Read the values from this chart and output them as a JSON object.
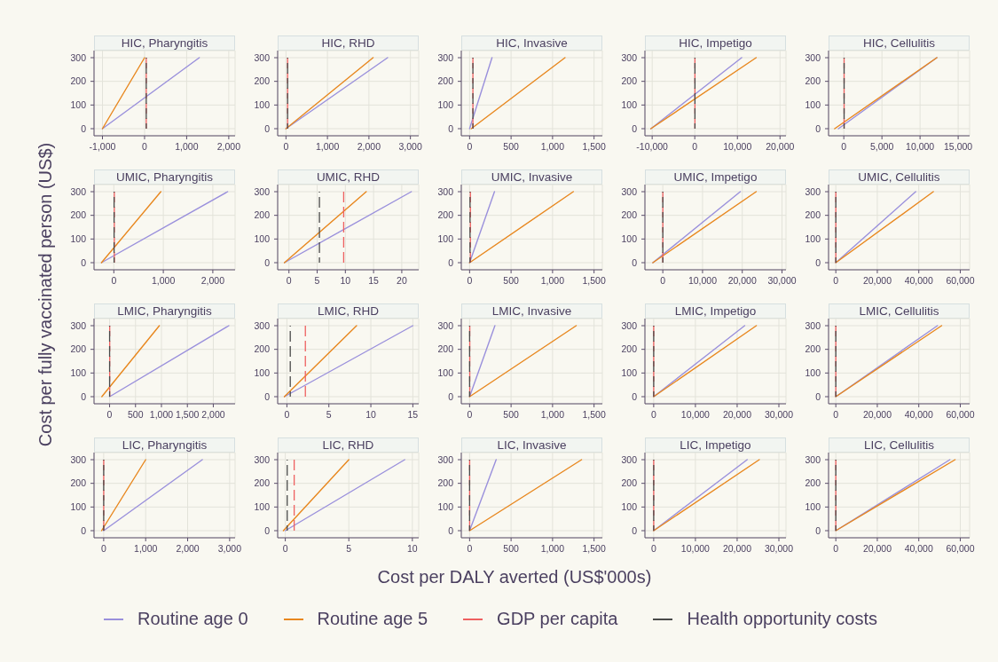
{
  "chart_data": [
    {
      "type": "line",
      "title": "HIC, Pharyngitis",
      "xlim": [
        -1200,
        2150
      ],
      "xticks": [
        {
          "value": -1000,
          "label": "-1,000"
        },
        0,
        {
          "value": 1000,
          "label": "1,000"
        },
        {
          "value": 2000,
          "label": "2,000"
        }
      ],
      "ylim": [
        -30,
        330
      ],
      "yticks": [
        0,
        100,
        200,
        300
      ],
      "grid": true,
      "series": [
        {
          "color": "#9a90dc",
          "x": [
            -1000,
            1300
          ],
          "values": [
            0,
            300
          ]
        },
        {
          "color": "#e8871e",
          "x": [
            -1000,
            0
          ],
          "values": [
            0,
            300
          ]
        }
      ],
      "ref_lines": [
        {
          "axis": "x",
          "value": 40,
          "color": "#ee6060",
          "line_style": "dashed"
        },
        {
          "axis": "x",
          "value": 40,
          "color": "#4a4a4a",
          "line_style": "dashed"
        }
      ]
    },
    {
      "type": "line",
      "title": "HIC, RHD",
      "xlim": [
        -200,
        3200
      ],
      "xticks": [
        0,
        {
          "value": 1000,
          "label": "1,000"
        },
        {
          "value": 2000,
          "label": "2,000"
        },
        {
          "value": 3000,
          "label": "3,000"
        }
      ],
      "ylim": [
        -30,
        330
      ],
      "yticks": [
        0,
        100,
        200,
        300
      ],
      "grid": true,
      "series": [
        {
          "color": "#9a90dc",
          "x": [
            0,
            2450
          ],
          "values": [
            0,
            300
          ]
        },
        {
          "color": "#e8871e",
          "x": [
            0,
            2100
          ],
          "values": [
            0,
            300
          ]
        }
      ],
      "ref_lines": [
        {
          "axis": "x",
          "value": 40,
          "color": "#ee6060",
          "line_style": "dashed"
        },
        {
          "axis": "x",
          "value": 40,
          "color": "#4a4a4a",
          "line_style": "dashed"
        }
      ]
    },
    {
      "type": "line",
      "title": "HIC, Invasive",
      "xlim": [
        -100,
        1600
      ],
      "xticks": [
        0,
        500,
        {
          "value": 1000,
          "label": "1,000"
        },
        {
          "value": 1500,
          "label": "1,500"
        }
      ],
      "ylim": [
        -30,
        330
      ],
      "yticks": [
        0,
        100,
        200,
        300
      ],
      "grid": true,
      "series": [
        {
          "color": "#9a90dc",
          "x": [
            0,
            270
          ],
          "values": [
            0,
            300
          ]
        },
        {
          "color": "#e8871e",
          "x": [
            20,
            1150
          ],
          "values": [
            0,
            300
          ]
        }
      ],
      "ref_lines": [
        {
          "axis": "x",
          "value": 40,
          "color": "#ee6060",
          "line_style": "dashed"
        },
        {
          "axis": "x",
          "value": 40,
          "color": "#4a4a4a",
          "line_style": "dashed"
        }
      ]
    },
    {
      "type": "line",
      "title": "HIC, Impetigo",
      "xlim": [
        -11700,
        21400
      ],
      "xticks": [
        {
          "value": -10000,
          "label": "-10,000"
        },
        0,
        {
          "value": 10000,
          "label": "10,000"
        },
        {
          "value": 20000,
          "label": "20,000"
        }
      ],
      "ylim": [
        -30,
        330
      ],
      "yticks": [
        0,
        100,
        200,
        300
      ],
      "grid": true,
      "series": [
        {
          "color": "#9a90dc",
          "x": [
            -10300,
            11000
          ],
          "values": [
            0,
            300
          ]
        },
        {
          "color": "#e8871e",
          "x": [
            -10300,
            14400
          ],
          "values": [
            0,
            300
          ]
        }
      ],
      "ref_lines": [
        {
          "axis": "x",
          "value": 40,
          "color": "#ee6060",
          "line_style": "dashed"
        },
        {
          "axis": "x",
          "value": 40,
          "color": "#4a4a4a",
          "line_style": "dashed"
        }
      ]
    },
    {
      "type": "line",
      "title": "HIC, Cellulitis",
      "xlim": [
        -2000,
        16500
      ],
      "xticks": [
        0,
        {
          "value": 5000,
          "label": "5,000"
        },
        {
          "value": 10000,
          "label": "10,000"
        },
        {
          "value": 15000,
          "label": "15,000"
        }
      ],
      "ylim": [
        -30,
        330
      ],
      "yticks": [
        0,
        100,
        200,
        300
      ],
      "grid": true,
      "series": [
        {
          "color": "#9a90dc",
          "x": [
            -700,
            12200
          ],
          "values": [
            0,
            300
          ]
        },
        {
          "color": "#e8871e",
          "x": [
            -1200,
            12200
          ],
          "values": [
            0,
            300
          ]
        }
      ],
      "ref_lines": [
        {
          "axis": "x",
          "value": 40,
          "color": "#ee6060",
          "line_style": "dashed"
        },
        {
          "axis": "x",
          "value": 40,
          "color": "#4a4a4a",
          "line_style": "dashed"
        }
      ]
    },
    {
      "type": "line",
      "title": "UMIC, Pharyngitis",
      "ylabel": "Cost per fully vaccinated person (US$)",
      "xlim": [
        -400,
        2450
      ],
      "xticks": [
        0,
        {
          "value": 1000,
          "label": "1,000"
        },
        {
          "value": 2000,
          "label": "2,000"
        }
      ],
      "ylim": [
        -30,
        330
      ],
      "yticks": [
        0,
        100,
        200,
        300
      ],
      "grid": true,
      "series": [
        {
          "color": "#9a90dc",
          "x": [
            -250,
            2300
          ],
          "values": [
            0,
            300
          ]
        },
        {
          "color": "#e8871e",
          "x": [
            -250,
            950
          ],
          "values": [
            0,
            300
          ]
        }
      ],
      "ref_lines": [
        {
          "axis": "x",
          "value": 9.7,
          "color": "#ee6060",
          "line_style": "dashed"
        },
        {
          "axis": "x",
          "value": 5.4,
          "color": "#4a4a4a",
          "line_style": "dashed"
        }
      ]
    },
    {
      "type": "line",
      "title": "UMIC, RHD",
      "xlim": [
        -2,
        23
      ],
      "xticks": [
        0,
        5,
        10,
        15,
        20
      ],
      "ylim": [
        -30,
        330
      ],
      "yticks": [
        0,
        100,
        200,
        300
      ],
      "grid": true,
      "series": [
        {
          "color": "#9a90dc",
          "x": [
            -0.8,
            21.7
          ],
          "values": [
            0,
            300
          ]
        },
        {
          "color": "#e8871e",
          "x": [
            -0.8,
            13.7
          ],
          "values": [
            0,
            300
          ]
        }
      ],
      "ref_lines": [
        {
          "axis": "x",
          "value": 9.7,
          "color": "#ee6060",
          "line_style": "dashed"
        },
        {
          "axis": "x",
          "value": 5.4,
          "color": "#4a4a4a",
          "line_style": "dashed"
        }
      ]
    },
    {
      "type": "line",
      "title": "UMIC, Invasive",
      "xlim": [
        -100,
        1600
      ],
      "xticks": [
        0,
        500,
        {
          "value": 1000,
          "label": "1,000"
        },
        {
          "value": 1500,
          "label": "1,500"
        }
      ],
      "ylim": [
        -30,
        330
      ],
      "yticks": [
        0,
        100,
        200,
        300
      ],
      "grid": true,
      "series": [
        {
          "color": "#9a90dc",
          "x": [
            0,
            300
          ],
          "values": [
            0,
            300
          ]
        },
        {
          "color": "#e8871e",
          "x": [
            0,
            1250
          ],
          "values": [
            0,
            300
          ]
        }
      ],
      "ref_lines": [
        {
          "axis": "x",
          "value": 9.7,
          "color": "#ee6060",
          "line_style": "dashed"
        },
        {
          "axis": "x",
          "value": 5.4,
          "color": "#4a4a4a",
          "line_style": "dashed"
        }
      ]
    },
    {
      "type": "line",
      "title": "UMIC, Impetigo",
      "xlim": [
        -4500,
        31000
      ],
      "xticks": [
        0,
        {
          "value": 10000,
          "label": "10,000"
        },
        {
          "value": 20000,
          "label": "20,000"
        },
        {
          "value": 30000,
          "label": "30,000"
        }
      ],
      "ylim": [
        -30,
        330
      ],
      "yticks": [
        0,
        100,
        200,
        300
      ],
      "grid": true,
      "series": [
        {
          "color": "#9a90dc",
          "x": [
            -2500,
            19500
          ],
          "values": [
            0,
            300
          ]
        },
        {
          "color": "#e8871e",
          "x": [
            -2500,
            23500
          ],
          "values": [
            0,
            300
          ]
        }
      ],
      "ref_lines": [
        {
          "axis": "x",
          "value": 9.7,
          "color": "#ee6060",
          "line_style": "dashed"
        },
        {
          "axis": "x",
          "value": 5.4,
          "color": "#4a4a4a",
          "line_style": "dashed"
        }
      ]
    },
    {
      "type": "line",
      "title": "UMIC, Cellulitis",
      "xlim": [
        -3500,
        64500
      ],
      "xticks": [
        0,
        {
          "value": 20000,
          "label": "20,000"
        },
        {
          "value": 40000,
          "label": "40,000"
        },
        {
          "value": 60000,
          "label": "60,000"
        }
      ],
      "ylim": [
        -30,
        330
      ],
      "yticks": [
        0,
        100,
        200,
        300
      ],
      "grid": true,
      "series": [
        {
          "color": "#9a90dc",
          "x": [
            0,
            38500
          ],
          "values": [
            0,
            300
          ]
        },
        {
          "color": "#e8871e",
          "x": [
            0,
            47000
          ],
          "values": [
            0,
            300
          ]
        }
      ],
      "ref_lines": [
        {
          "axis": "x",
          "value": 9.7,
          "color": "#ee6060",
          "line_style": "dashed"
        },
        {
          "axis": "x",
          "value": 5.4,
          "color": "#4a4a4a",
          "line_style": "dashed"
        }
      ]
    },
    {
      "type": "line",
      "title": "LMIC, Pharyngitis",
      "xlim": [
        -300,
        2420
      ],
      "xticks": [
        0,
        500,
        {
          "value": 1000,
          "label": "1,000"
        },
        {
          "value": 1500,
          "label": "1,500"
        },
        {
          "value": 2000,
          "label": "2,000"
        }
      ],
      "ylim": [
        -30,
        330
      ],
      "yticks": [
        0,
        100,
        200,
        300
      ],
      "grid": true,
      "series": [
        {
          "color": "#9a90dc",
          "x": [
            0,
            2300
          ],
          "values": [
            0,
            300
          ]
        },
        {
          "color": "#e8871e",
          "x": [
            -150,
            960
          ],
          "values": [
            0,
            300
          ]
        }
      ],
      "ref_lines": [
        {
          "axis": "x",
          "value": 2.2,
          "color": "#ee6060",
          "line_style": "dashed"
        },
        {
          "axis": "x",
          "value": 0.4,
          "color": "#4a4a4a",
          "line_style": "dashed"
        }
      ]
    },
    {
      "type": "line",
      "title": "LMIC, RHD",
      "xlim": [
        -1.1,
        15.7
      ],
      "xticks": [
        0,
        5,
        10,
        15
      ],
      "ylim": [
        -30,
        330
      ],
      "yticks": [
        0,
        100,
        200,
        300
      ],
      "grid": true,
      "series": [
        {
          "color": "#9a90dc",
          "x": [
            -0.3,
            15
          ],
          "values": [
            0,
            300
          ]
        },
        {
          "color": "#e8871e",
          "x": [
            -0.3,
            8.3
          ],
          "values": [
            0,
            300
          ]
        }
      ],
      "ref_lines": [
        {
          "axis": "x",
          "value": 2.2,
          "color": "#ee6060",
          "line_style": "dashed"
        },
        {
          "axis": "x",
          "value": 0.4,
          "color": "#4a4a4a",
          "line_style": "dashed"
        }
      ]
    },
    {
      "type": "line",
      "title": "LMIC, Invasive",
      "xlim": [
        -100,
        1600
      ],
      "xticks": [
        0,
        500,
        {
          "value": 1000,
          "label": "1,000"
        },
        {
          "value": 1500,
          "label": "1,500"
        }
      ],
      "ylim": [
        -30,
        330
      ],
      "yticks": [
        0,
        100,
        200,
        300
      ],
      "grid": true,
      "series": [
        {
          "color": "#9a90dc",
          "x": [
            0,
            305
          ],
          "values": [
            0,
            300
          ]
        },
        {
          "color": "#e8871e",
          "x": [
            0,
            1285
          ],
          "values": [
            0,
            300
          ]
        }
      ],
      "ref_lines": [
        {
          "axis": "x",
          "value": 2.2,
          "color": "#ee6060",
          "line_style": "dashed"
        },
        {
          "axis": "x",
          "value": 0.4,
          "color": "#4a4a4a",
          "line_style": "dashed"
        }
      ]
    },
    {
      "type": "line",
      "title": "LMIC, Impetigo",
      "xlim": [
        -2100,
        31700
      ],
      "xticks": [
        0,
        {
          "value": 10000,
          "label": "10,000"
        },
        {
          "value": 20000,
          "label": "20,000"
        },
        {
          "value": 30000,
          "label": "30,000"
        }
      ],
      "ylim": [
        -30,
        330
      ],
      "yticks": [
        0,
        100,
        200,
        300
      ],
      "grid": true,
      "series": [
        {
          "color": "#9a90dc",
          "x": [
            0,
            21800
          ],
          "values": [
            0,
            300
          ]
        },
        {
          "color": "#e8871e",
          "x": [
            0,
            24600
          ],
          "values": [
            0,
            300
          ]
        }
      ],
      "ref_lines": [
        {
          "axis": "x",
          "value": 2.2,
          "color": "#ee6060",
          "line_style": "dashed"
        },
        {
          "axis": "x",
          "value": 0.4,
          "color": "#4a4a4a",
          "line_style": "dashed"
        }
      ]
    },
    {
      "type": "line",
      "title": "LMIC, Cellulitis",
      "xlim": [
        -3500,
        64500
      ],
      "xticks": [
        0,
        {
          "value": 20000,
          "label": "20,000"
        },
        {
          "value": 40000,
          "label": "40,000"
        },
        {
          "value": 60000,
          "label": "60,000"
        }
      ],
      "ylim": [
        -30,
        330
      ],
      "yticks": [
        0,
        100,
        200,
        300
      ],
      "grid": true,
      "series": [
        {
          "color": "#9a90dc",
          "x": [
            0,
            49000
          ],
          "values": [
            0,
            300
          ]
        },
        {
          "color": "#e8871e",
          "x": [
            0,
            51000
          ],
          "values": [
            0,
            300
          ]
        }
      ],
      "ref_lines": [
        {
          "axis": "x",
          "value": 2.2,
          "color": "#ee6060",
          "line_style": "dashed"
        },
        {
          "axis": "x",
          "value": 0.4,
          "color": "#4a4a4a",
          "line_style": "dashed"
        }
      ]
    },
    {
      "type": "line",
      "title": "LIC, Pharyngitis",
      "xlim": [
        -230,
        3130
      ],
      "xticks": [
        0,
        {
          "value": 1000,
          "label": "1,000"
        },
        {
          "value": 2000,
          "label": "2,000"
        },
        {
          "value": 3000,
          "label": "3,000"
        }
      ],
      "ylim": [
        -30,
        330
      ],
      "yticks": [
        0,
        100,
        200,
        300
      ],
      "grid": true,
      "series": [
        {
          "color": "#9a90dc",
          "x": [
            0,
            2350
          ],
          "values": [
            0,
            300
          ]
        },
        {
          "color": "#e8871e",
          "x": [
            -50,
            1000
          ],
          "values": [
            0,
            300
          ]
        }
      ],
      "ref_lines": [
        {
          "axis": "x",
          "value": 0.7,
          "color": "#ee6060",
          "line_style": "dashed"
        },
        {
          "axis": "x",
          "value": 0.15,
          "color": "#4a4a4a",
          "line_style": "dashed"
        }
      ]
    },
    {
      "type": "line",
      "title": "LIC, RHD",
      "xlim": [
        -0.6,
        10.5
      ],
      "xticks": [
        0,
        5,
        10
      ],
      "ylim": [
        -30,
        330
      ],
      "yticks": [
        0,
        100,
        200,
        300
      ],
      "grid": true,
      "series": [
        {
          "color": "#9a90dc",
          "x": [
            0,
            9.4
          ],
          "values": [
            0,
            300
          ]
        },
        {
          "color": "#e8871e",
          "x": [
            -0.15,
            5
          ],
          "values": [
            0,
            300
          ]
        }
      ],
      "ref_lines": [
        {
          "axis": "x",
          "value": 0.7,
          "color": "#ee6060",
          "line_style": "dashed"
        },
        {
          "axis": "x",
          "value": 0.15,
          "color": "#4a4a4a",
          "line_style": "dashed"
        }
      ]
    },
    {
      "type": "line",
      "title": "LIC, Invasive",
      "xlabel": "Cost per DALY averted (US$'000s)",
      "legend": "bottom",
      "xlim": [
        -100,
        1600
      ],
      "xticks": [
        0,
        500,
        {
          "value": 1000,
          "label": "1,000"
        },
        {
          "value": 1500,
          "label": "1,500"
        }
      ],
      "ylim": [
        -30,
        330
      ],
      "yticks": [
        0,
        100,
        200,
        300
      ],
      "grid": true,
      "series": [
        {
          "name": "Routine age 0",
          "color": "#9a90dc",
          "x": [
            0,
            320
          ],
          "values": [
            0,
            300
          ]
        },
        {
          "name": "Routine age 5",
          "color": "#e8871e",
          "x": [
            0,
            1350
          ],
          "values": [
            0,
            300
          ]
        }
      ],
      "ref_lines": [
        {
          "axis": "x",
          "value": 0.7,
          "color": "#ee6060",
          "line_style": "dashed",
          "label": "GDP per capita"
        },
        {
          "axis": "x",
          "value": 0.15,
          "color": "#4a4a4a",
          "line_style": "dashed",
          "label": "Health opportunity costs"
        }
      ]
    },
    {
      "type": "line",
      "title": "LIC, Impetigo",
      "xlim": [
        -2100,
        31700
      ],
      "xticks": [
        0,
        {
          "value": 10000,
          "label": "10,000"
        },
        {
          "value": 20000,
          "label": "20,000"
        },
        {
          "value": 30000,
          "label": "30,000"
        }
      ],
      "ylim": [
        -30,
        330
      ],
      "yticks": [
        0,
        100,
        200,
        300
      ],
      "grid": true,
      "series": [
        {
          "color": "#9a90dc",
          "x": [
            0,
            22400
          ],
          "values": [
            0,
            300
          ]
        },
        {
          "color": "#e8871e",
          "x": [
            0,
            25300
          ],
          "values": [
            0,
            300
          ]
        }
      ],
      "ref_lines": [
        {
          "axis": "x",
          "value": 0.7,
          "color": "#ee6060",
          "line_style": "dashed"
        },
        {
          "axis": "x",
          "value": 0.15,
          "color": "#4a4a4a",
          "line_style": "dashed"
        }
      ]
    },
    {
      "type": "line",
      "title": "LIC, Cellulitis",
      "xlim": [
        -3500,
        64500
      ],
      "xticks": [
        0,
        {
          "value": 20000,
          "label": "20,000"
        },
        {
          "value": 40000,
          "label": "40,000"
        },
        {
          "value": 60000,
          "label": "60,000"
        }
      ],
      "ylim": [
        -30,
        330
      ],
      "yticks": [
        0,
        100,
        200,
        300
      ],
      "grid": true,
      "series": [
        {
          "color": "#9a90dc",
          "x": [
            0,
            55000
          ],
          "values": [
            0,
            300
          ]
        },
        {
          "color": "#e8871e",
          "x": [
            0,
            57500
          ],
          "values": [
            0,
            300
          ]
        }
      ],
      "ref_lines": [
        {
          "axis": "x",
          "value": 0.7,
          "color": "#ee6060",
          "line_style": "dashed"
        },
        {
          "axis": "x",
          "value": 0.15,
          "color": "#4a4a4a",
          "line_style": "dashed"
        }
      ]
    }
  ]
}
